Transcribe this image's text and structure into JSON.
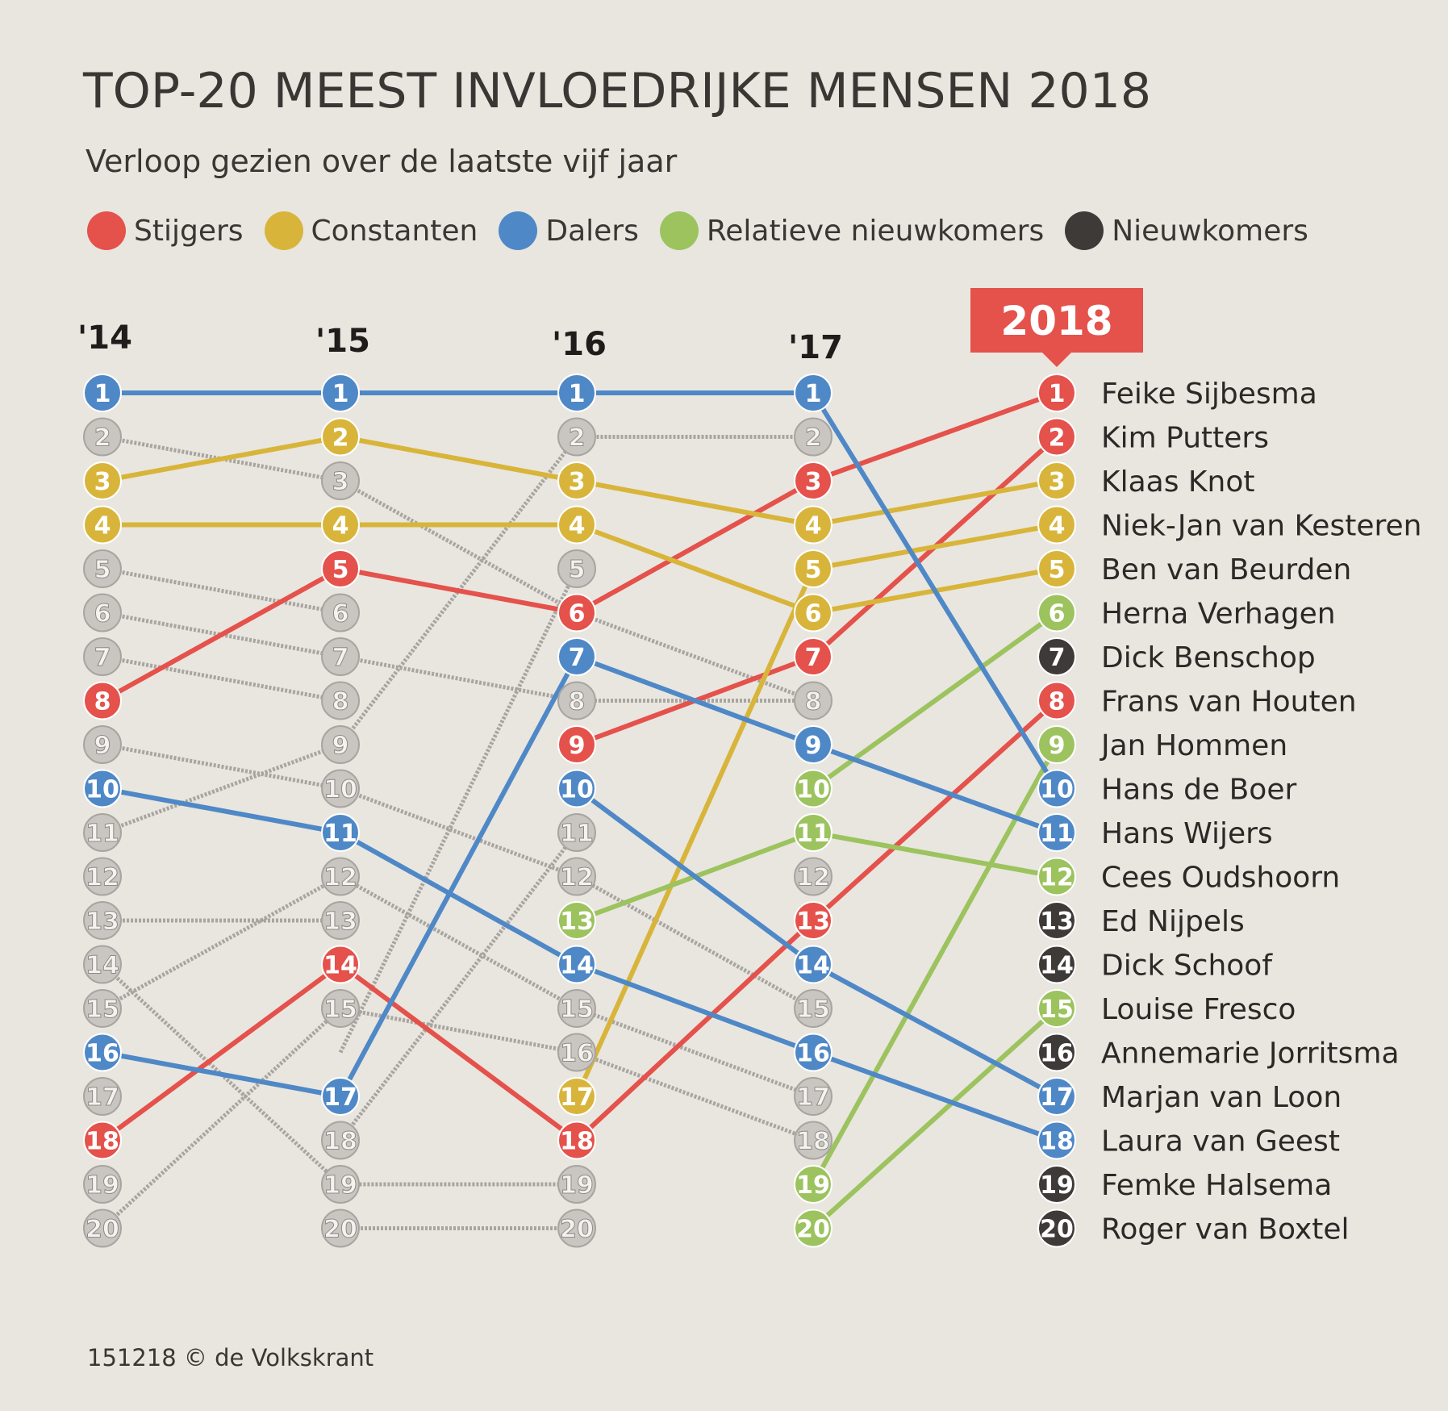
{
  "title": "TOP-20 MEEST INVLOEDRIJKE MENSEN 2018",
  "subtitle": "Verloop gezien over de laatste vijf jaar",
  "source": "151218 © de Volkskrant",
  "legend": [
    {
      "label": "Stijgers",
      "color": "#e5514b"
    },
    {
      "label": "Constanten",
      "color": "#d8b53a"
    },
    {
      "label": "Dalers",
      "color": "#4f88c6"
    },
    {
      "label": "Relatieve nieuwkomers",
      "color": "#9cc35e"
    },
    {
      "label": "Nieuwkomers",
      "color": "#3d3a37"
    }
  ],
  "chart_data": {
    "type": "line",
    "title": "TOP-20 MEEST INVLOEDRIJKE MENSEN 2018",
    "subtitle": "Verloop gezien over de laatste vijf jaar",
    "x": [
      "'14",
      "'15",
      "'16",
      "'17",
      "2018"
    ],
    "ranks": [
      1,
      2,
      3,
      4,
      5,
      6,
      7,
      8,
      9,
      10,
      11,
      12,
      13,
      14,
      15,
      16,
      17,
      18,
      19,
      20
    ],
    "y_inverted": true,
    "colors": {
      "stijgers": "#e5514b",
      "constanten": "#d8b53a",
      "dalers": "#4f88c6",
      "relatieve_nieuwkomers": "#9cc35e",
      "nieuwkomers": "#3d3a37",
      "overig": "#a8a5a1"
    },
    "series": [
      {
        "name": "Feike Sijbesma",
        "group": "stijgers",
        "ranks": [
          8,
          5,
          6,
          3,
          1
        ]
      },
      {
        "name": "Kim Putters",
        "group": "stijgers",
        "ranks": [
          null,
          null,
          9,
          7,
          2
        ]
      },
      {
        "name": "Klaas Knot",
        "group": "constanten",
        "ranks": [
          3,
          2,
          3,
          4,
          3
        ]
      },
      {
        "name": "Niek-Jan van Kesteren",
        "group": "constanten",
        "ranks": [
          null,
          null,
          17,
          5,
          4
        ]
      },
      {
        "name": "Ben van Beurden",
        "group": "constanten",
        "ranks": [
          4,
          4,
          4,
          6,
          5
        ]
      },
      {
        "name": "Herna Verhagen",
        "group": "relatieve_nieuwkomers",
        "ranks": [
          null,
          null,
          null,
          10,
          6
        ]
      },
      {
        "name": "Dick Benschop",
        "group": "nieuwkomers",
        "ranks": [
          null,
          null,
          null,
          null,
          7
        ]
      },
      {
        "name": "Frans van Houten",
        "group": "stijgers",
        "ranks": [
          18,
          14,
          18,
          13,
          8
        ]
      },
      {
        "name": "Jan Hommen",
        "group": "relatieve_nieuwkomers",
        "ranks": [
          null,
          null,
          null,
          19,
          9
        ]
      },
      {
        "name": "Hans de Boer",
        "group": "dalers",
        "ranks": [
          1,
          1,
          1,
          1,
          10
        ]
      },
      {
        "name": "Hans Wijers",
        "group": "dalers",
        "ranks": [
          16,
          17,
          7,
          9,
          11
        ]
      },
      {
        "name": "Cees Oudshoorn",
        "group": "relatieve_nieuwkomers",
        "ranks": [
          null,
          null,
          13,
          11,
          12
        ]
      },
      {
        "name": "Ed Nijpels",
        "group": "nieuwkomers",
        "ranks": [
          null,
          null,
          null,
          null,
          13
        ]
      },
      {
        "name": "Dick Schoof",
        "group": "nieuwkomers",
        "ranks": [
          null,
          null,
          null,
          null,
          14
        ]
      },
      {
        "name": "Louise Fresco",
        "group": "relatieve_nieuwkomers",
        "ranks": [
          null,
          null,
          null,
          20,
          15
        ]
      },
      {
        "name": "Annemarie Jorritsma",
        "group": "nieuwkomers",
        "ranks": [
          null,
          null,
          null,
          null,
          16
        ]
      },
      {
        "name": "Marjan van Loon",
        "group": "dalers",
        "ranks": [
          null,
          null,
          10,
          14,
          17
        ]
      },
      {
        "name": "Laura van Geest",
        "group": "dalers",
        "ranks": [
          10,
          11,
          14,
          16,
          18
        ]
      },
      {
        "name": "Femke Halsema",
        "group": "nieuwkomers",
        "ranks": [
          null,
          null,
          null,
          null,
          19
        ]
      },
      {
        "name": "Roger van Boxtel",
        "group": "nieuwkomers",
        "ranks": [
          null,
          null,
          null,
          null,
          20
        ]
      }
    ],
    "grey_tracks": [
      [
        [
          0,
          2
        ],
        [
          1,
          3
        ],
        [
          2,
          6
        ],
        [
          3,
          8
        ]
      ],
      [
        [
          0,
          5
        ],
        [
          1,
          6
        ]
      ],
      [
        [
          0,
          6
        ],
        [
          1,
          7
        ],
        [
          2,
          8
        ],
        [
          3,
          8
        ]
      ],
      [
        [
          0,
          7
        ],
        [
          1,
          8
        ]
      ],
      [
        [
          0,
          9
        ],
        [
          1,
          10
        ],
        [
          2,
          12
        ],
        [
          3,
          15
        ]
      ],
      [
        [
          0,
          11
        ],
        [
          1,
          9
        ],
        [
          2,
          2
        ],
        [
          3,
          2
        ]
      ],
      [
        [
          0,
          13
        ],
        [
          1,
          13
        ]
      ],
      [
        [
          0,
          14
        ],
        [
          1,
          19
        ],
        [
          2,
          19
        ]
      ],
      [
        [
          0,
          15
        ],
        [
          1,
          12
        ],
        [
          2,
          15
        ],
        [
          3,
          17
        ]
      ],
      [
        [
          0,
          20
        ],
        [
          1,
          15
        ],
        [
          2,
          16
        ],
        [
          3,
          18
        ]
      ],
      [
        [
          1,
          18
        ],
        [
          2,
          11
        ]
      ],
      [
        [
          1,
          16
        ],
        [
          2,
          5
        ]
      ],
      [
        [
          1,
          20
        ],
        [
          2,
          20
        ]
      ]
    ],
    "grey_nodes": [
      [
        0,
        [
          2,
          5,
          6,
          7,
          9,
          11,
          12,
          13,
          14,
          15,
          17,
          19,
          20
        ]
      ],
      [
        1,
        [
          3,
          6,
          7,
          8,
          9,
          10,
          12,
          13,
          15,
          18,
          19,
          20
        ]
      ],
      [
        2,
        [
          2,
          5,
          8,
          11,
          12,
          15,
          16,
          19,
          20
        ]
      ],
      [
        3,
        [
          2,
          8,
          12,
          15,
          17,
          18
        ]
      ]
    ]
  }
}
